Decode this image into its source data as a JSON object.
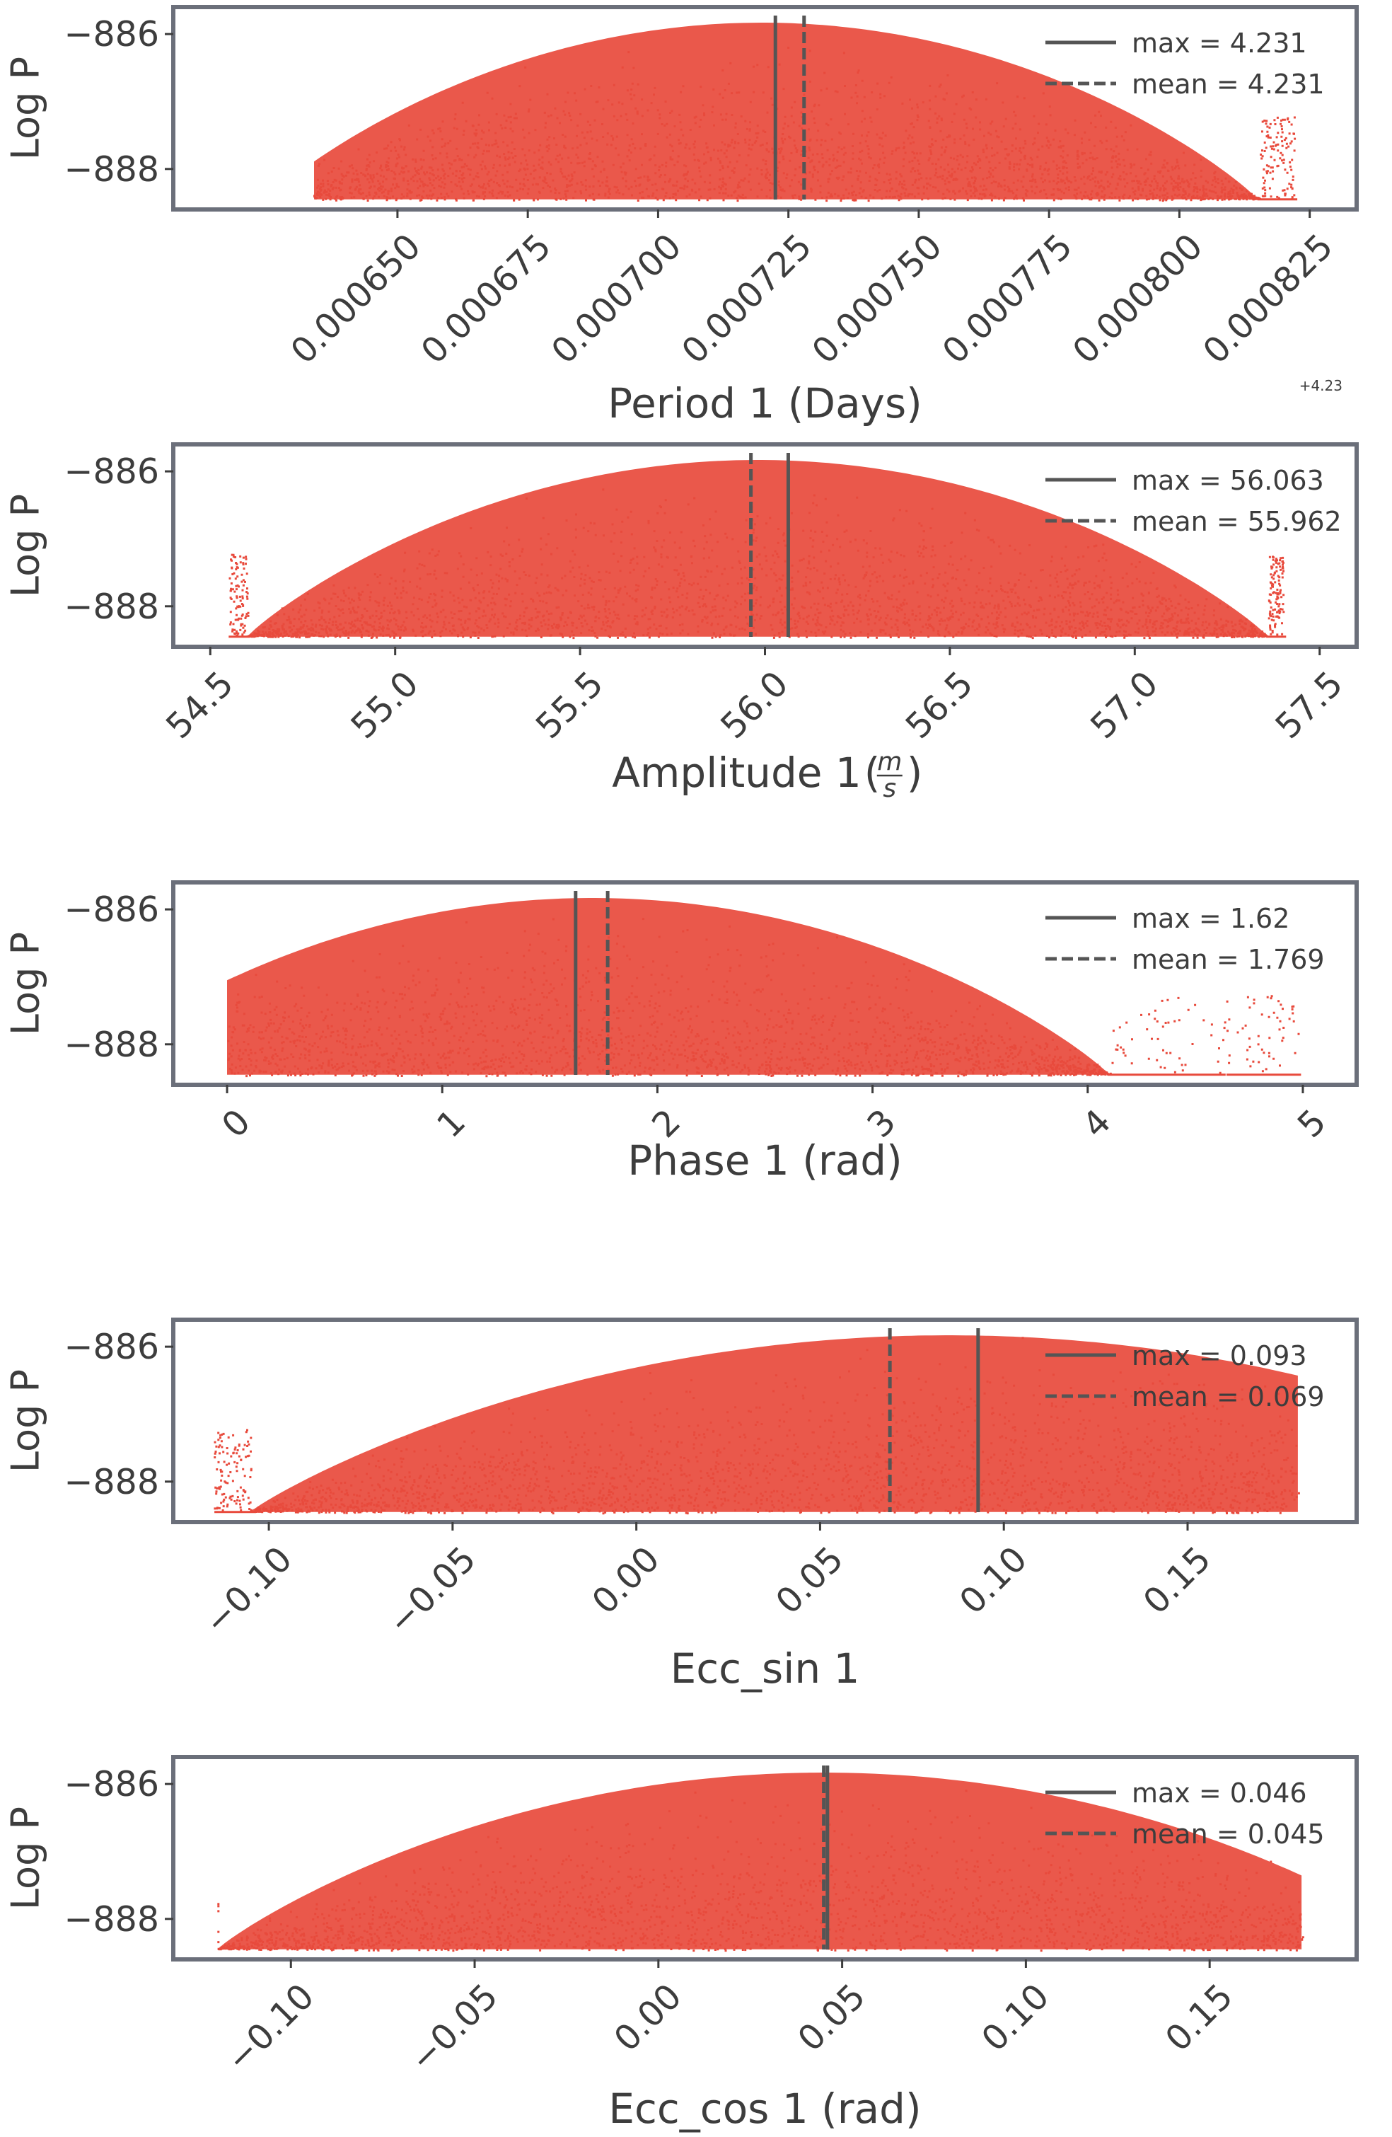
{
  "colors": {
    "points": "#e84a3c",
    "frame": "#6b6f7a",
    "marker_line": "#555555",
    "text": "#3d3d3d"
  },
  "chart_data": [
    {
      "type": "scatter",
      "xlabel": "Period 1 (Days)",
      "ylabel": "Log P",
      "offset_text": "+4.23",
      "xlim": [
        0.000607,
        0.000834
      ],
      "ylim": [
        -888.6,
        -885.6
      ],
      "x_ticks": [
        0.00065,
        0.000675,
        0.0007,
        0.000725,
        0.00075,
        0.000775,
        0.0008,
        0.000825
      ],
      "x_tick_labels": [
        "0.000650",
        "0.000675",
        "0.000700",
        "0.000725",
        "0.000750",
        "0.000775",
        "0.000800",
        "0.000825"
      ],
      "y_ticks": [
        -886,
        -888
      ],
      "y_tick_labels": [
        "−886",
        "−888"
      ],
      "cloud": {
        "center": 0.00072,
        "halfwidth": 9.5e-05,
        "left_tail": 0.000634,
        "right_tail": 0.000822,
        "floor": -888.45,
        "peak": -885.75
      },
      "lines": [
        {
          "label": "max = 4.231",
          "x": 0.0007225,
          "style": "solid"
        },
        {
          "label": "mean = 4.231",
          "x": 0.000728,
          "style": "dashed"
        }
      ],
      "legend": "top-right"
    },
    {
      "type": "scatter",
      "xlabel": "Amplitude 1 ",
      "xlabel_unit_num": "m",
      "xlabel_unit_den": "s",
      "ylabel": "Log P",
      "xlim": [
        54.4,
        57.6
      ],
      "ylim": [
        -888.6,
        -885.6
      ],
      "x_ticks": [
        54.5,
        55.0,
        55.5,
        56.0,
        56.5,
        57.0,
        57.5
      ],
      "x_tick_labels": [
        "54.5",
        "55.0",
        "55.5",
        "56.0",
        "56.5",
        "57.0",
        "57.5"
      ],
      "y_ticks": [
        -886,
        -888
      ],
      "y_tick_labels": [
        "−886",
        "−888"
      ],
      "cloud": {
        "center": 55.98,
        "halfwidth": 1.38,
        "left_tail": 54.55,
        "right_tail": 57.4,
        "floor": -888.45,
        "peak": -885.75
      },
      "lines": [
        {
          "label": "max = 56.063",
          "x": 56.063,
          "style": "solid"
        },
        {
          "label": "mean = 55.962",
          "x": 55.962,
          "style": "dashed"
        }
      ],
      "legend": "top-right"
    },
    {
      "type": "scatter",
      "xlabel": "Phase 1 (rad)",
      "ylabel": "Log P",
      "xlim": [
        -0.25,
        5.25
      ],
      "ylim": [
        -888.6,
        -885.6
      ],
      "x_ticks": [
        0,
        1,
        2,
        3,
        4,
        5
      ],
      "x_tick_labels": [
        "0",
        "1",
        "2",
        "3",
        "4",
        "5"
      ],
      "y_ticks": [
        -886,
        -888
      ],
      "y_tick_labels": [
        "−886",
        "−888"
      ],
      "cloud": {
        "center": 1.7,
        "halfwidth": 2.4,
        "left_tail": 0.0,
        "right_tail": 4.98,
        "floor": -888.45,
        "peak": -885.75,
        "clip_left": 0.0
      },
      "lines": [
        {
          "label": "max = 1.62",
          "x": 1.62,
          "style": "solid"
        },
        {
          "label": "mean = 1.769",
          "x": 1.769,
          "style": "dashed"
        }
      ],
      "legend": "top-right"
    },
    {
      "type": "scatter",
      "xlabel": "Ecc_sin 1",
      "ylabel": "Log P",
      "xlim": [
        -0.126,
        0.196
      ],
      "ylim": [
        -888.6,
        -885.6
      ],
      "x_ticks": [
        -0.1,
        -0.05,
        0.0,
        0.05,
        0.1,
        0.15
      ],
      "x_tick_labels": [
        "−0.10",
        "−0.05",
        "0.00",
        "0.05",
        "0.10",
        "0.15"
      ],
      "y_ticks": [
        -886,
        -888
      ],
      "y_tick_labels": [
        "−886",
        "−888"
      ],
      "cloud": {
        "center": 0.085,
        "halfwidth": 0.19,
        "left_tail": -0.115,
        "right_tail": 0.18,
        "floor": -888.45,
        "peak": -885.75
      },
      "lines": [
        {
          "label": "max = 0.093",
          "x": 0.093,
          "style": "solid"
        },
        {
          "label": "mean = 0.069",
          "x": 0.069,
          "style": "dashed"
        }
      ],
      "legend": "top-right"
    },
    {
      "type": "scatter",
      "xlabel": "Ecc_cos 1 (rad)",
      "ylabel": "Log P",
      "xlim": [
        -0.132,
        0.19
      ],
      "ylim": [
        -888.6,
        -885.6
      ],
      "x_ticks": [
        -0.1,
        -0.05,
        0.0,
        0.05,
        0.1,
        0.15
      ],
      "x_tick_labels": [
        "−0.10",
        "−0.05",
        "0.00",
        "0.05",
        "0.10",
        "0.15"
      ],
      "y_ticks": [
        -886,
        -888
      ],
      "y_tick_labels": [
        "−886",
        "−888"
      ],
      "cloud": {
        "center": 0.045,
        "halfwidth": 0.165,
        "left_tail": -0.12,
        "right_tail": 0.175,
        "floor": -888.45,
        "peak": -885.75
      },
      "lines": [
        {
          "label": "max = 0.046",
          "x": 0.046,
          "style": "solid"
        },
        {
          "label": "mean = 0.045",
          "x": 0.045,
          "style": "dashed"
        }
      ],
      "legend": "top-right"
    }
  ]
}
